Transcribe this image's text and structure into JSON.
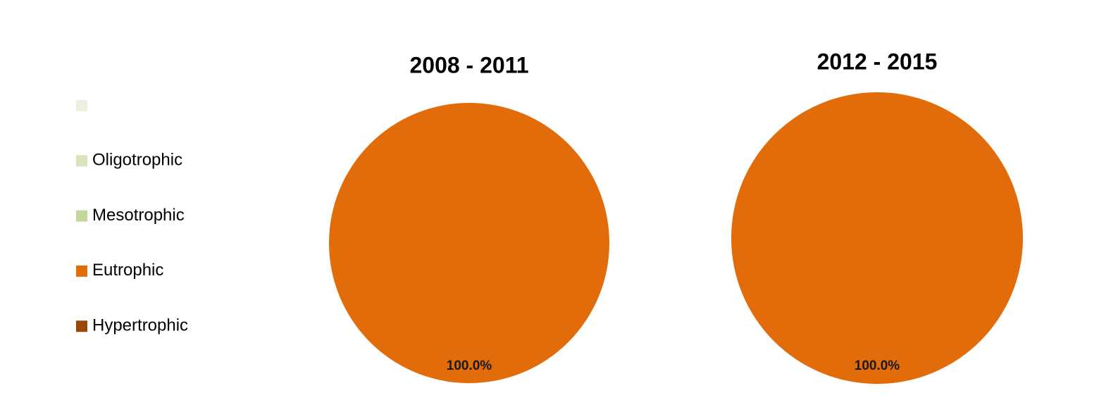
{
  "chart_data": [
    {
      "type": "pie",
      "title": "2008 - 2011",
      "categories": [
        null,
        "Oligotrophic",
        "Mesotrophic",
        "Eutrophic",
        "Hypertrophic"
      ],
      "values": [
        0,
        0,
        0,
        100,
        0
      ],
      "value_labels": [
        null,
        null,
        null,
        "100.0%",
        null
      ],
      "colors": [
        "#ebf1de",
        "#d8e4bc",
        "#c4d79b",
        "#e26b0a",
        "#974706"
      ],
      "legend": "left"
    },
    {
      "type": "pie",
      "title": "2012 - 2015",
      "categories": [
        null,
        "Oligotrophic",
        "Mesotrophic",
        "Eutrophic",
        "Hypertrophic"
      ],
      "values": [
        0,
        0,
        0,
        100,
        0
      ],
      "value_labels": [
        null,
        null,
        null,
        "100.0%",
        null
      ],
      "colors": [
        "#ebf1de",
        "#d8e4bc",
        "#c4d79b",
        "#e26b0a",
        "#974706"
      ]
    }
  ]
}
